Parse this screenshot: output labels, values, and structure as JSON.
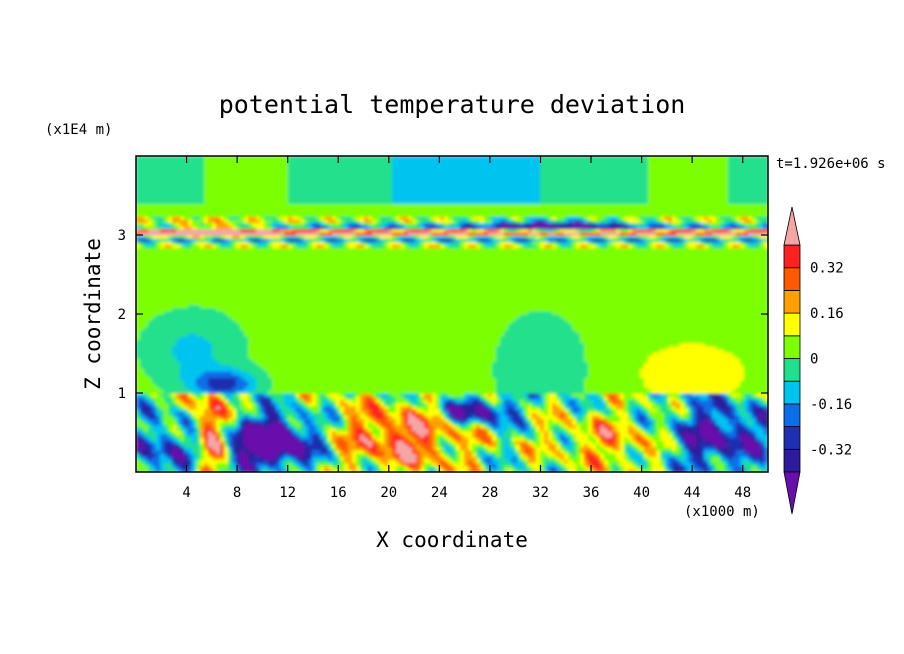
{
  "chart_data": {
    "type": "heatmap",
    "title": "potential temperature deviation",
    "xlabel": "X coordinate",
    "ylabel": "Z coordinate",
    "x_unit": "(x1000 m)",
    "y_unit": "(x1E4 m)",
    "time_label": "t=1.926e+06 s",
    "xlim": [
      0,
      50
    ],
    "ylim": [
      0,
      4
    ],
    "x_ticks": [
      "4",
      "8",
      "12",
      "16",
      "20",
      "24",
      "28",
      "32",
      "36",
      "40",
      "44",
      "48"
    ],
    "y_ticks": [
      "1",
      "2",
      "3"
    ],
    "colorbar": {
      "levels": [
        -0.4,
        -0.32,
        -0.24,
        -0.16,
        -0.08,
        0,
        0.08,
        0.16,
        0.24,
        0.32,
        0.4
      ],
      "tick_labels": [
        "0.32",
        "0.16",
        "0",
        "-0.16",
        "-0.32"
      ],
      "colors": [
        "#6a0dad",
        "#2e1a9c",
        "#1e2fb0",
        "#0a6fe8",
        "#00c4f0",
        "#20e08c",
        "#7cff00",
        "#ffff00",
        "#ffa000",
        "#ff5a00",
        "#ff2020",
        "#f4a6a6"
      ],
      "extend": "both"
    },
    "background_value": 0.04,
    "features": [
      {
        "region": "upper band near z=3",
        "pattern": "alternating positive and negative layers with wave structures"
      },
      {
        "region": "middle troposphere z=1 to 2.9",
        "pattern": "near zero, weak negative anomalies near x=4 and x=32, weak positive near x=44"
      },
      {
        "region": "lower layer z=0 to 1",
        "pattern": "strong turbulent eddies, cold core near x=10 z=0.4, warm columns near x=6 and x=22"
      }
    ]
  }
}
